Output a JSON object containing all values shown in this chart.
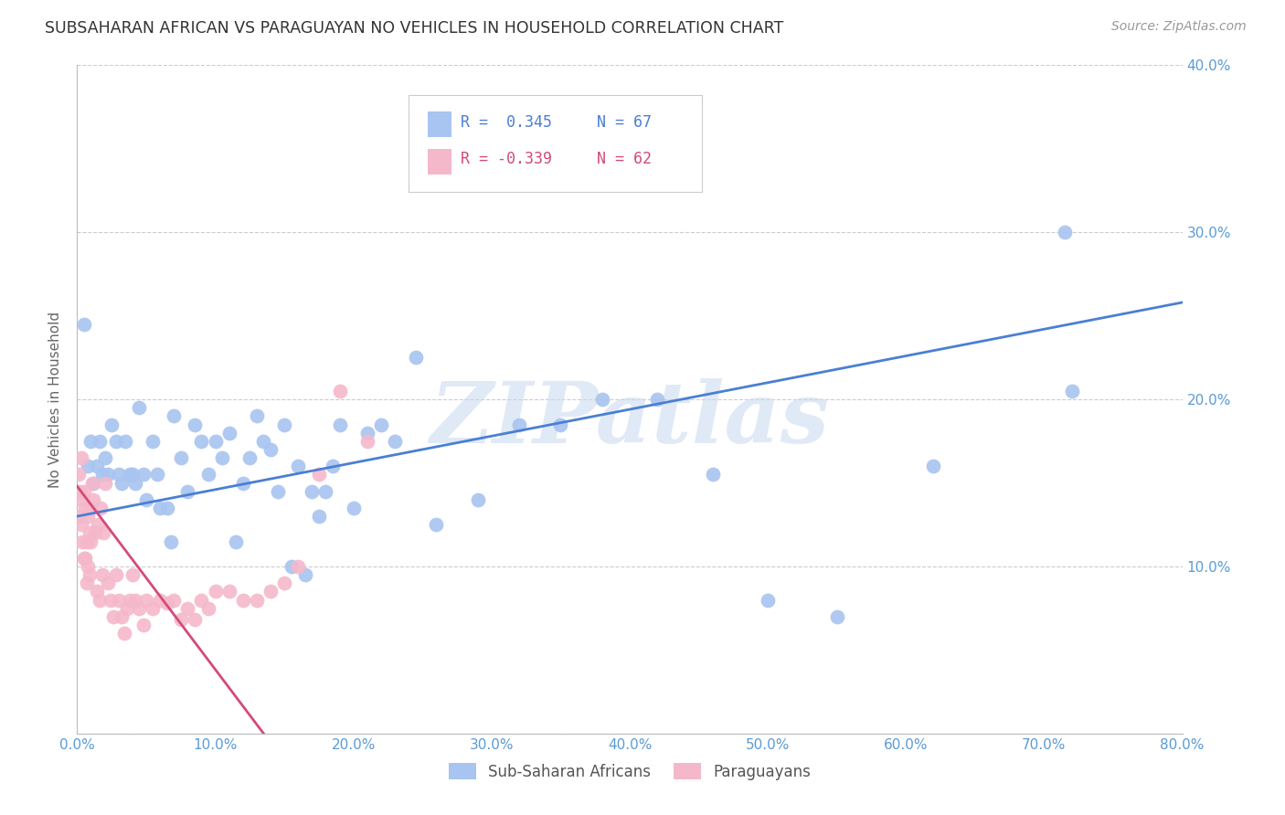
{
  "title": "SUBSAHARAN AFRICAN VS PARAGUAYAN NO VEHICLES IN HOUSEHOLD CORRELATION CHART",
  "source": "Source: ZipAtlas.com",
  "ylabel": "No Vehicles in Household",
  "xlim": [
    0,
    0.8
  ],
  "ylim": [
    0,
    0.4
  ],
  "xticks": [
    0.0,
    0.1,
    0.2,
    0.3,
    0.4,
    0.5,
    0.6,
    0.7,
    0.8
  ],
  "yticks": [
    0.0,
    0.1,
    0.2,
    0.3,
    0.4
  ],
  "xtick_labels": [
    "0.0%",
    "10.0%",
    "20.0%",
    "30.0%",
    "40.0%",
    "50.0%",
    "60.0%",
    "70.0%",
    "80.0%"
  ],
  "right_ytick_labels": [
    "",
    "10.0%",
    "20.0%",
    "30.0%",
    "40.0%"
  ],
  "blue_color": "#a8c4f0",
  "pink_color": "#f5b8cb",
  "blue_line_color": "#4a7fd4",
  "pink_line_color": "#d44a7a",
  "tick_color": "#5b9bd5",
  "legend_r_blue": "R =  0.345",
  "legend_n_blue": "N = 67",
  "legend_r_pink": "R = -0.339",
  "legend_n_pink": "N = 62",
  "watermark": "ZIPatlas",
  "blue_line_x0": 0.0,
  "blue_line_x1": 0.8,
  "blue_line_y0": 0.13,
  "blue_line_y1": 0.258,
  "pink_line_x0": 0.0,
  "pink_line_x1": 0.135,
  "pink_line_y0": 0.148,
  "pink_line_y1": 0.0,
  "blue_scatter_x": [
    0.005,
    0.008,
    0.01,
    0.012,
    0.014,
    0.016,
    0.018,
    0.02,
    0.022,
    0.025,
    0.028,
    0.03,
    0.032,
    0.035,
    0.038,
    0.04,
    0.042,
    0.045,
    0.048,
    0.05,
    0.055,
    0.058,
    0.06,
    0.065,
    0.068,
    0.07,
    0.075,
    0.08,
    0.085,
    0.09,
    0.095,
    0.1,
    0.105,
    0.11,
    0.115,
    0.12,
    0.125,
    0.13,
    0.135,
    0.14,
    0.145,
    0.15,
    0.155,
    0.16,
    0.165,
    0.17,
    0.175,
    0.18,
    0.185,
    0.19,
    0.2,
    0.21,
    0.22,
    0.23,
    0.245,
    0.26,
    0.29,
    0.32,
    0.35,
    0.38,
    0.42,
    0.46,
    0.5,
    0.55,
    0.62,
    0.715,
    0.72
  ],
  "blue_scatter_y": [
    0.245,
    0.16,
    0.175,
    0.15,
    0.16,
    0.175,
    0.155,
    0.165,
    0.155,
    0.185,
    0.175,
    0.155,
    0.15,
    0.175,
    0.155,
    0.155,
    0.15,
    0.195,
    0.155,
    0.14,
    0.175,
    0.155,
    0.135,
    0.135,
    0.115,
    0.19,
    0.165,
    0.145,
    0.185,
    0.175,
    0.155,
    0.175,
    0.165,
    0.18,
    0.115,
    0.15,
    0.165,
    0.19,
    0.175,
    0.17,
    0.145,
    0.185,
    0.1,
    0.16,
    0.095,
    0.145,
    0.13,
    0.145,
    0.16,
    0.185,
    0.135,
    0.18,
    0.185,
    0.175,
    0.225,
    0.125,
    0.14,
    0.185,
    0.185,
    0.2,
    0.2,
    0.155,
    0.08,
    0.07,
    0.16,
    0.3,
    0.205
  ],
  "pink_scatter_x": [
    0.001,
    0.002,
    0.002,
    0.003,
    0.003,
    0.004,
    0.004,
    0.005,
    0.005,
    0.006,
    0.006,
    0.007,
    0.007,
    0.008,
    0.008,
    0.009,
    0.009,
    0.01,
    0.01,
    0.011,
    0.012,
    0.013,
    0.014,
    0.015,
    0.016,
    0.017,
    0.018,
    0.019,
    0.02,
    0.022,
    0.024,
    0.026,
    0.028,
    0.03,
    0.032,
    0.034,
    0.036,
    0.038,
    0.04,
    0.042,
    0.045,
    0.048,
    0.05,
    0.055,
    0.06,
    0.065,
    0.07,
    0.075,
    0.08,
    0.085,
    0.09,
    0.095,
    0.1,
    0.11,
    0.12,
    0.13,
    0.14,
    0.15,
    0.16,
    0.175,
    0.19,
    0.21
  ],
  "pink_scatter_y": [
    0.155,
    0.13,
    0.145,
    0.165,
    0.125,
    0.14,
    0.115,
    0.145,
    0.105,
    0.105,
    0.135,
    0.09,
    0.115,
    0.1,
    0.13,
    0.12,
    0.095,
    0.135,
    0.115,
    0.15,
    0.14,
    0.12,
    0.085,
    0.125,
    0.08,
    0.135,
    0.095,
    0.12,
    0.15,
    0.09,
    0.08,
    0.07,
    0.095,
    0.08,
    0.07,
    0.06,
    0.075,
    0.08,
    0.095,
    0.08,
    0.075,
    0.065,
    0.08,
    0.075,
    0.08,
    0.078,
    0.08,
    0.068,
    0.075,
    0.068,
    0.08,
    0.075,
    0.085,
    0.085,
    0.08,
    0.08,
    0.085,
    0.09,
    0.1,
    0.155,
    0.205,
    0.175
  ]
}
